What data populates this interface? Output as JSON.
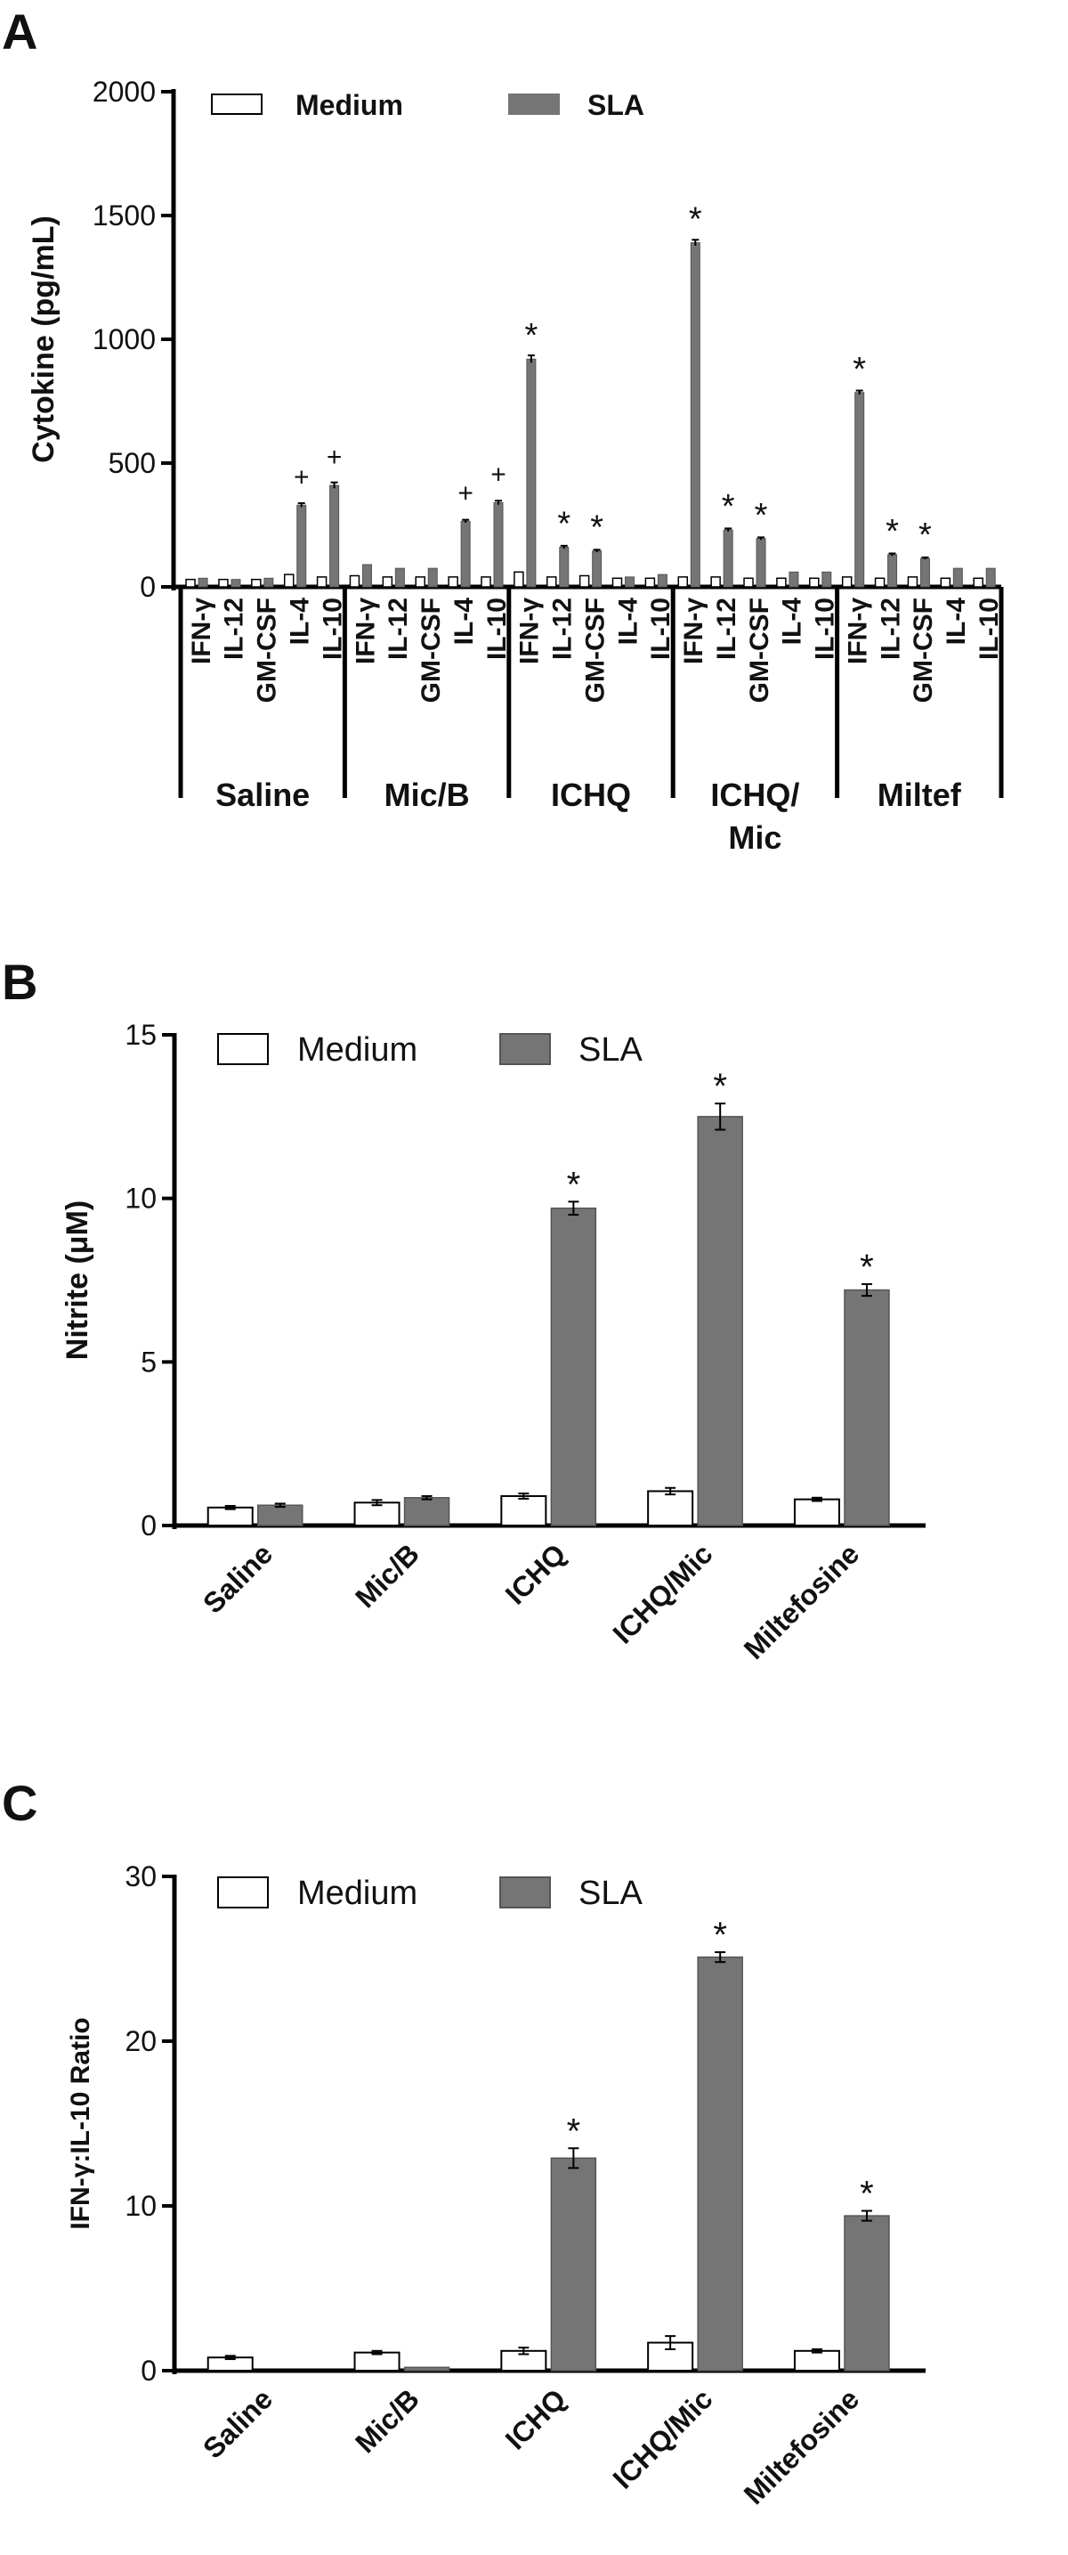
{
  "colors": {
    "medium": "#ffffff",
    "sla": "#757575",
    "axis": "#000000"
  },
  "chart_data": [
    {
      "panel": "A",
      "type": "bar",
      "ylabel": "Cytokine (pg/mL)",
      "ylim": [
        0,
        2000
      ],
      "yticks": [
        0,
        500,
        1000,
        1500,
        2000
      ],
      "legend": [
        "Medium",
        "SLA"
      ],
      "legend_position": "top",
      "groups": [
        "Saline",
        "Mic/B",
        "ICHQ",
        "ICHQ/\nMic",
        "Miltef"
      ],
      "categories": [
        "IFN-γ",
        "IL-12",
        "GM-CSF",
        "IL-4",
        "IL-10"
      ],
      "series": [
        {
          "name": "Medium",
          "values": [
            [
              30,
              30,
              30,
              50,
              40
            ],
            [
              45,
              40,
              40,
              40,
              40
            ],
            [
              60,
              40,
              45,
              35,
              35
            ],
            [
              40,
              40,
              35,
              35,
              35
            ],
            [
              40,
              35,
              40,
              35,
              35
            ]
          ]
        },
        {
          "name": "SLA",
          "values": [
            [
              35,
              30,
              35,
              330,
              410
            ],
            [
              90,
              75,
              75,
              265,
              340
            ],
            [
              920,
              160,
              145,
              40,
              50
            ],
            [
              1390,
              230,
              195,
              60,
              60
            ],
            [
              785,
              130,
              115,
              75,
              75
            ]
          ]
        }
      ],
      "sla_errors": [
        [
          3,
          3,
          3,
          8,
          12
        ],
        [
          4,
          4,
          4,
          6,
          8
        ],
        [
          15,
          6,
          5,
          3,
          3
        ],
        [
          12,
          6,
          5,
          3,
          3
        ],
        [
          8,
          5,
          4,
          3,
          3
        ]
      ],
      "annotations": [
        [
          null,
          null,
          null,
          "+",
          "+"
        ],
        [
          null,
          null,
          null,
          "+",
          "+"
        ],
        [
          "*",
          "*",
          "*",
          null,
          null
        ],
        [
          "*",
          "*",
          "*",
          null,
          null
        ],
        [
          "*",
          "*",
          "*",
          null,
          null
        ]
      ]
    },
    {
      "panel": "B",
      "type": "bar",
      "ylabel": "Nitrite (μM)",
      "ylim": [
        0,
        15
      ],
      "yticks": [
        0,
        5,
        10,
        15
      ],
      "legend": [
        "Medium",
        "SLA"
      ],
      "legend_position": "top",
      "categories": [
        "Saline",
        "Mic/B",
        "ICHQ",
        "ICHQ/Mic",
        "Miltefosine"
      ],
      "series": [
        {
          "name": "Medium",
          "values": [
            0.55,
            0.7,
            0.9,
            1.05,
            0.8
          ],
          "errors": [
            0.05,
            0.08,
            0.08,
            0.1,
            0.05
          ]
        },
        {
          "name": "SLA",
          "values": [
            0.62,
            0.85,
            9.7,
            12.5,
            7.2
          ],
          "errors": [
            0.05,
            0.05,
            0.2,
            0.4,
            0.18
          ]
        }
      ],
      "annotations": [
        null,
        null,
        "*",
        "*",
        "*"
      ]
    },
    {
      "panel": "C",
      "type": "bar",
      "ylabel": "IFN-γ:IL-10 Ratio",
      "ylim": [
        0,
        30
      ],
      "yticks": [
        0,
        10,
        20,
        30
      ],
      "legend": [
        "Medium",
        "SLA"
      ],
      "legend_position": "top",
      "categories": [
        "Saline",
        "Mic/B",
        "ICHQ",
        "ICHQ/Mic",
        "Miltefosine"
      ],
      "series": [
        {
          "name": "Medium",
          "values": [
            0.8,
            1.1,
            1.2,
            1.7,
            1.2
          ],
          "errors": [
            0.1,
            0.1,
            0.2,
            0.4,
            0.1
          ]
        },
        {
          "name": "SLA",
          "values": [
            0,
            0.2,
            12.9,
            25.1,
            9.4
          ],
          "errors": [
            0,
            0,
            0.6,
            0.3,
            0.3
          ]
        }
      ],
      "annotations": [
        null,
        null,
        "*",
        "*",
        "*"
      ]
    }
  ]
}
